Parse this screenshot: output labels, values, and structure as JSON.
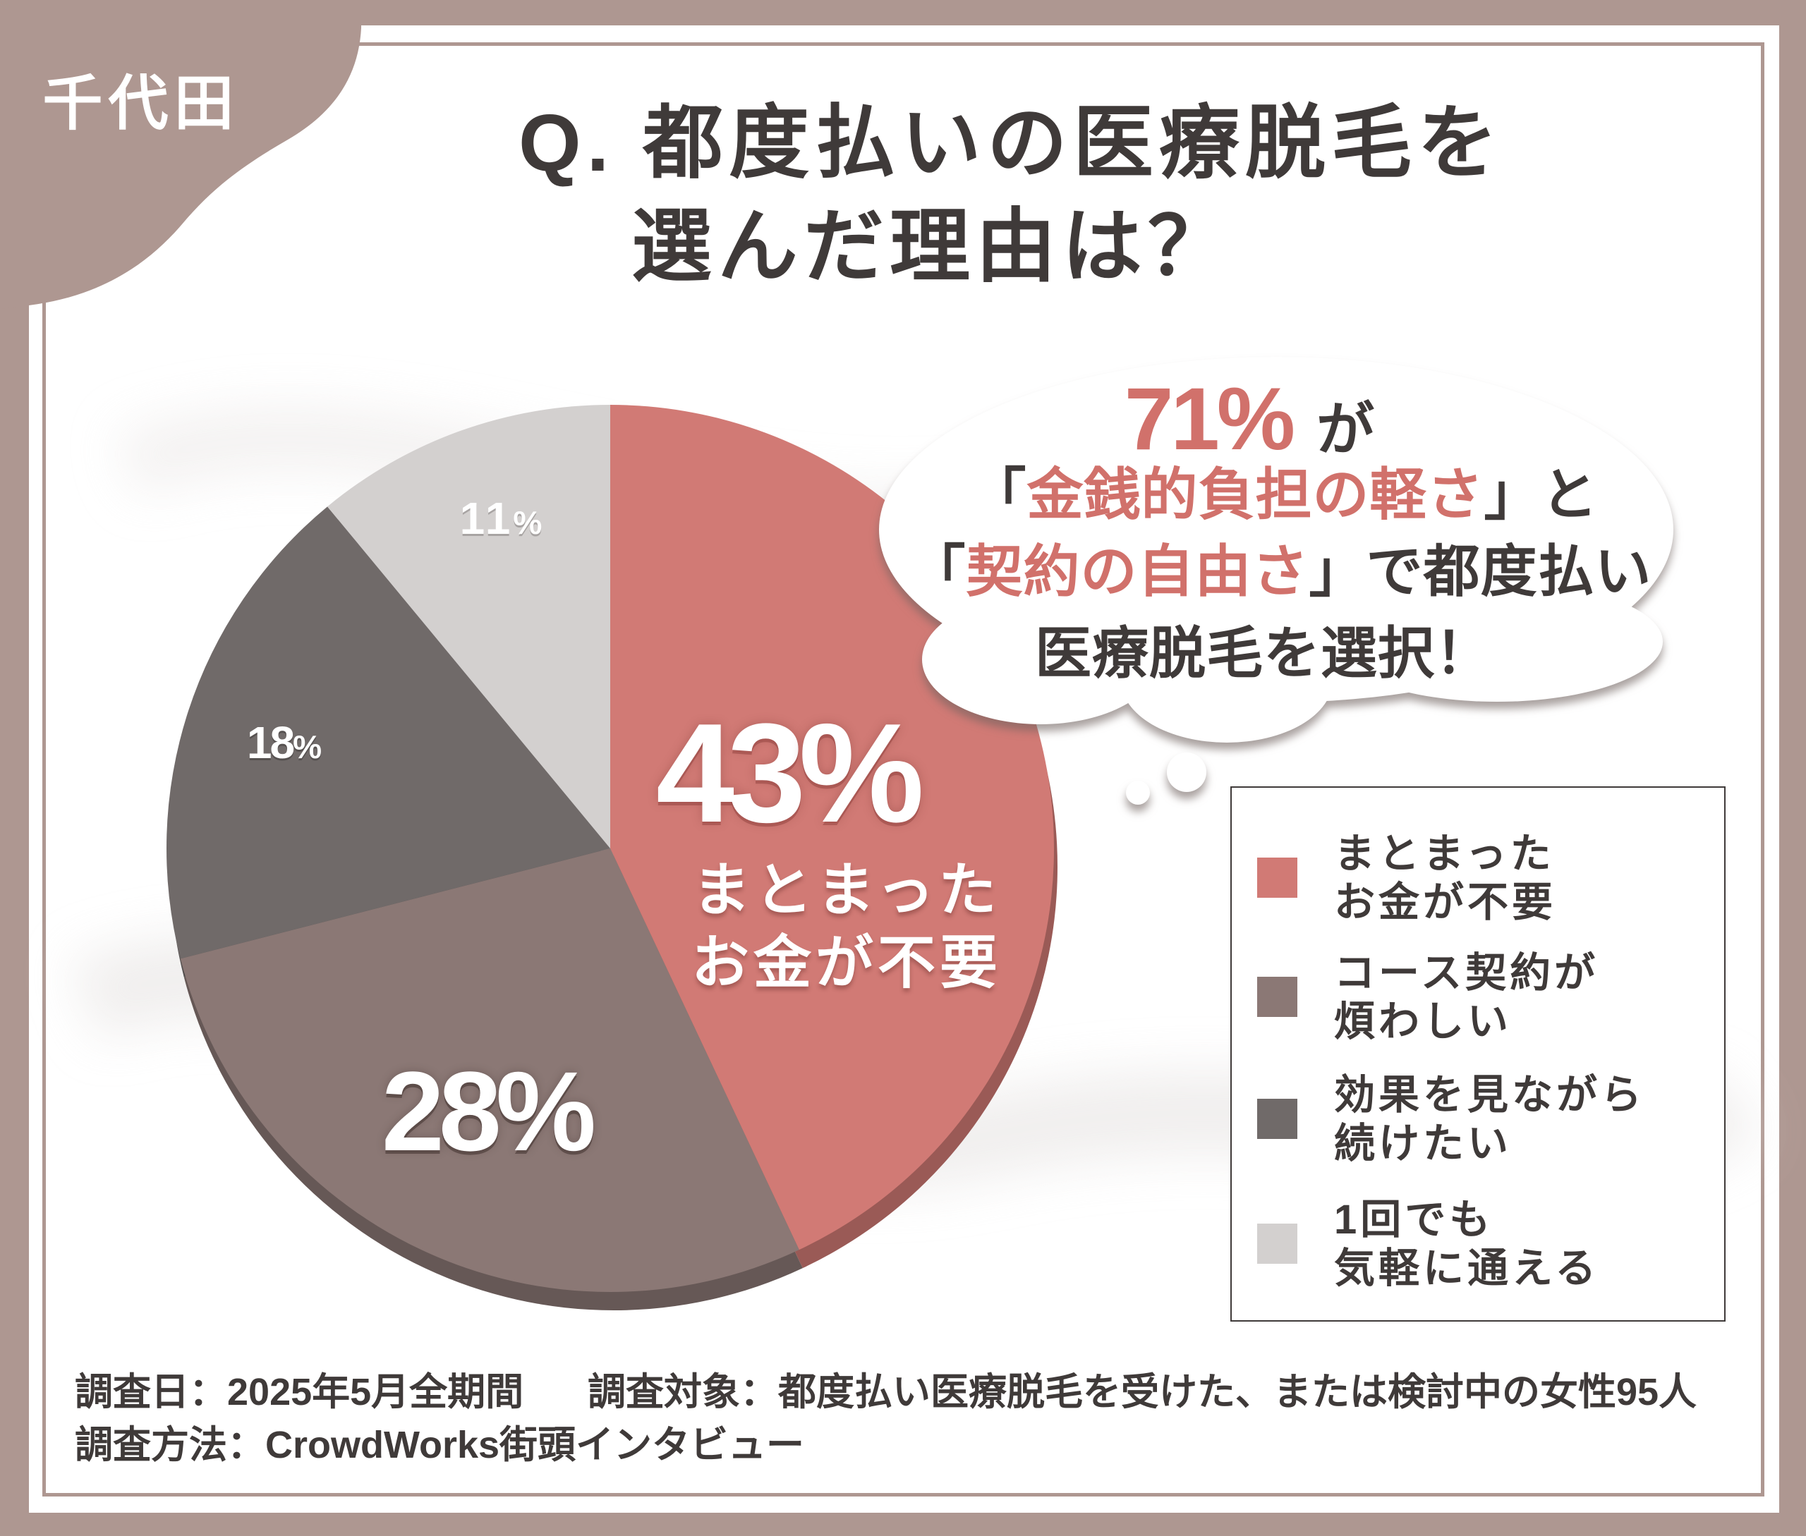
{
  "brand": "千代田",
  "colors": {
    "frame": "#ae9791",
    "text": "#3f3a39",
    "accent": "#d1716b",
    "panel": "#ffffff"
  },
  "chart_data": {
    "type": "pie",
    "title": [
      "Q. 都度払いの医療脱毛を",
      "選んだ理由は？"
    ],
    "categories": [
      "まとまった\nお金が不要",
      "コース契約が\n煩わしい",
      "効果を見ながら\n続けたい",
      "1回でも\n気軽に通える"
    ],
    "values": [
      43,
      28,
      18,
      11
    ],
    "unit": "%",
    "colors": [
      "#d17a75",
      "#8b7875",
      "#706a69",
      "#d3d0cf"
    ],
    "legend_position": "right"
  },
  "bubble": {
    "line1": {
      "percent": "71%",
      "suffix": "が"
    },
    "line2": {
      "open": "「",
      "accent": "金銭的負担の軽さ",
      "close": "」と"
    },
    "line3": {
      "open": "「",
      "accent": "契約の自由さ",
      "close": "」で都度払い"
    },
    "line4": "医療脱毛を選択！"
  },
  "footer": {
    "date": "調査日：2025年5月全期間",
    "target": "調査対象：都度払い医療脱毛を受けた、または検討中の女性95人",
    "method": "調査方法：CrowdWorks街頭インタビュー"
  }
}
